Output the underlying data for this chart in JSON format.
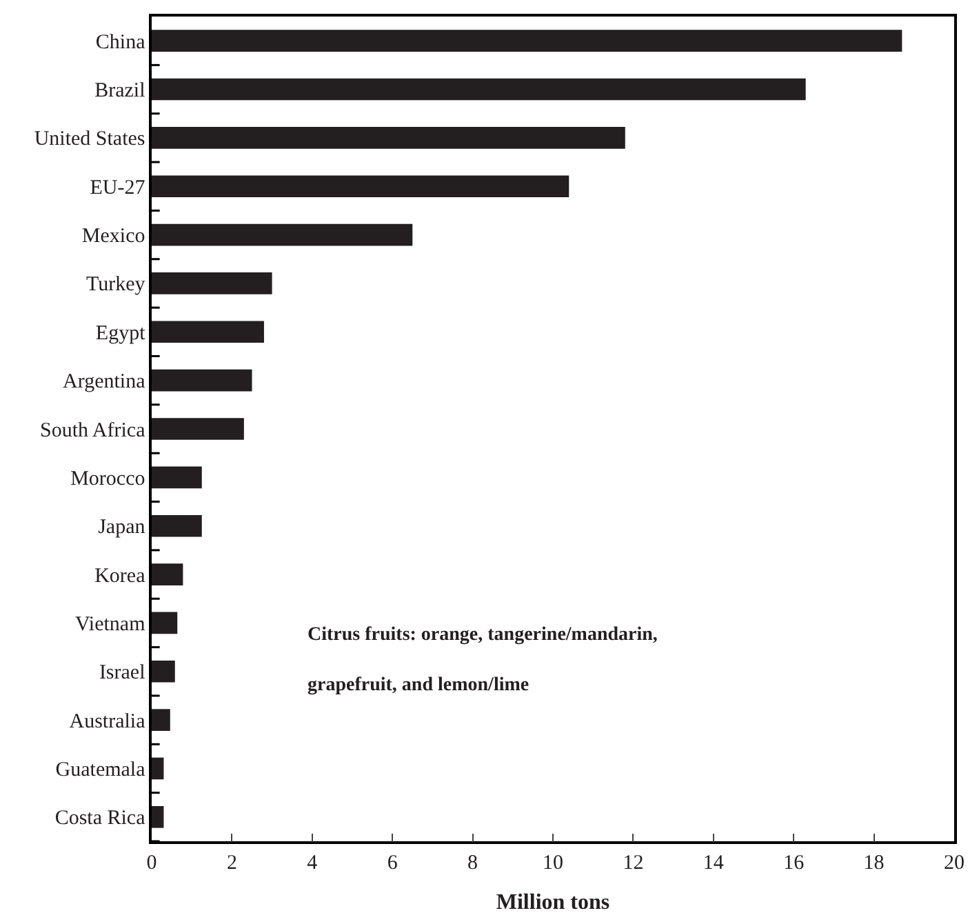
{
  "chart_data": {
    "type": "bar",
    "orientation": "horizontal",
    "xlabel": "Million tons",
    "categories": [
      "China",
      "Brazil",
      "United States",
      "EU-27",
      "Mexico",
      "Turkey",
      "Egypt",
      "Argentina",
      "South Africa",
      "Morocco",
      "Japan",
      "Korea",
      "Vietnam",
      "Israel",
      "Australia",
      "Guatemala",
      "Costa Rica"
    ],
    "values": [
      18.7,
      16.3,
      11.8,
      10.4,
      6.5,
      3.0,
      2.8,
      2.5,
      2.3,
      1.25,
      1.25,
      0.78,
      0.64,
      0.58,
      0.46,
      0.3,
      0.3
    ],
    "color": "#231f20",
    "xlim": [
      0,
      20
    ],
    "xticks": [
      0,
      2,
      4,
      6,
      8,
      10,
      12,
      14,
      16,
      18,
      20
    ],
    "annotations": [
      "Citrus fruits: orange, tangerine/mandarin,\ngrapefruit, and lemon/lime"
    ]
  }
}
